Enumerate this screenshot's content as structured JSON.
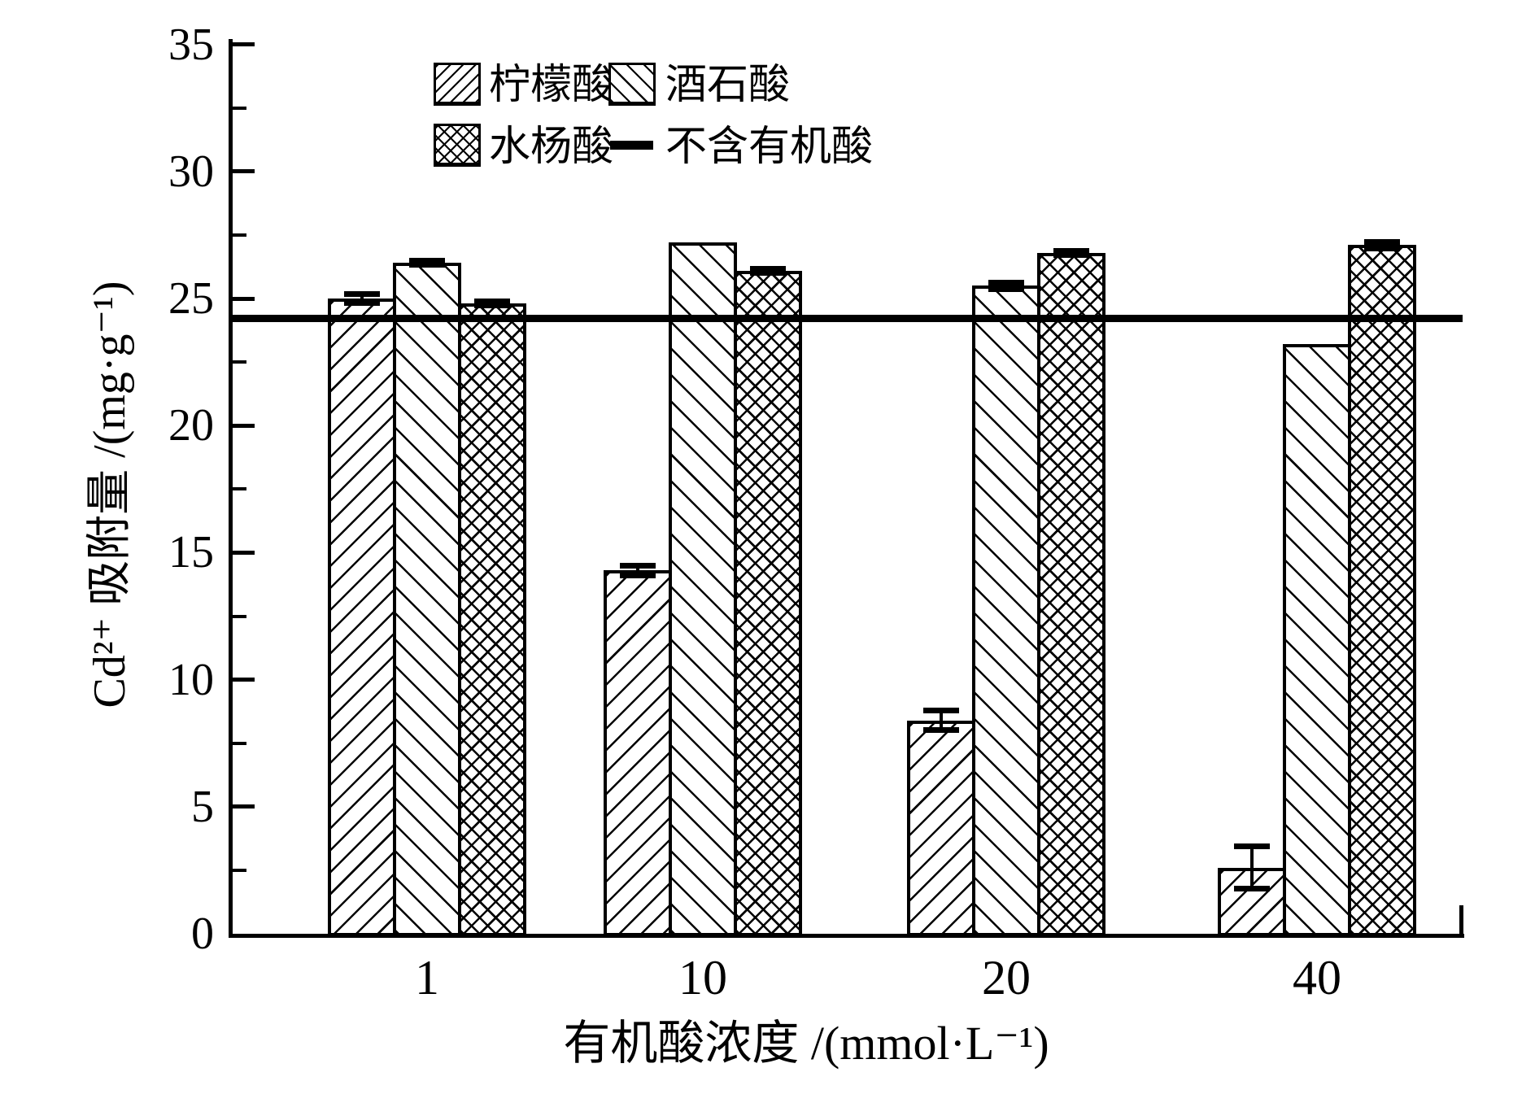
{
  "chart_data": {
    "type": "bar",
    "title": "",
    "categories": [
      "1",
      "10",
      "20",
      "40"
    ],
    "series": [
      {
        "name": "柠檬酸",
        "pattern": "diagonal-up",
        "values": [
          25.0,
          14.3,
          8.4,
          2.6
        ],
        "errors": [
          0.2,
          0.2,
          0.4,
          0.85
        ]
      },
      {
        "name": "酒石酸",
        "pattern": "diagonal-down",
        "values": [
          26.4,
          27.2,
          25.5,
          23.2
        ],
        "errors": [
          0.1,
          0,
          0.15,
          0
        ]
      },
      {
        "name": "水杨酸",
        "pattern": "crosshatch",
        "values": [
          24.8,
          26.1,
          26.8,
          27.1
        ],
        "errors": [
          0.1,
          0.1,
          0.1,
          0.15
        ]
      }
    ],
    "reference_line": {
      "label": "不含有机酸",
      "value": 24.2
    },
    "xlabel": "有机酸浓度 /(mmol·L⁻¹)",
    "ylabel": "Cd²⁺ 吸附量 /(mg·g⁻¹)",
    "ylim": [
      0,
      35
    ],
    "y_major_ticks": [
      0,
      5,
      10,
      15,
      20,
      25,
      30,
      35
    ],
    "y_minor_step": 2.5,
    "legend_position": "top-inside",
    "grid": false,
    "colors": {
      "foreground": "#000000",
      "background": "#ffffff"
    }
  }
}
